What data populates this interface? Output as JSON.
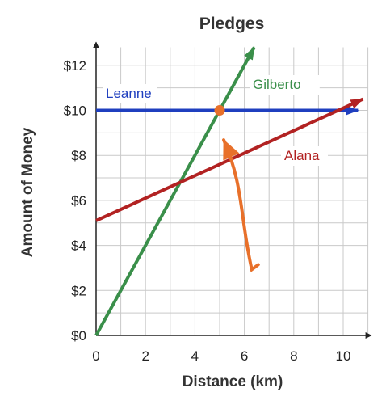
{
  "chart_data": {
    "type": "line",
    "title": "Pledges",
    "xlabel": "Distance (km)",
    "ylabel": "Amount of Money",
    "xlim": [
      0,
      11
    ],
    "ylim": [
      0,
      12.8
    ],
    "grid": true,
    "x_ticks": [
      0,
      2,
      4,
      6,
      8,
      10
    ],
    "x_tick_labels": [
      "0",
      "2",
      "4",
      "6",
      "8",
      "10"
    ],
    "y_ticks": [
      0,
      2,
      4,
      6,
      8,
      10,
      12
    ],
    "y_tick_labels": [
      "$0",
      "$2",
      "$4",
      "$6",
      "$8",
      "$10",
      "$12"
    ],
    "series": [
      {
        "name": "Leanne",
        "color": "#1f3fbf",
        "x": [
          0,
          10.6
        ],
        "y": [
          10,
          10
        ]
      },
      {
        "name": "Gilberto",
        "color": "#3a8f4a",
        "x": [
          0,
          6.4
        ],
        "y": [
          0,
          12.8
        ]
      },
      {
        "name": "Alana",
        "color": "#b22222",
        "x": [
          0,
          10.8
        ],
        "y": [
          5.1,
          10.5
        ]
      }
    ],
    "highlight_point": {
      "x": 5,
      "y": 10,
      "color": "#e8702a"
    },
    "annotation_arrow": {
      "color": "#e8702a",
      "from": [
        6.3,
        3.0
      ],
      "to": [
        5.1,
        8.9
      ]
    }
  }
}
